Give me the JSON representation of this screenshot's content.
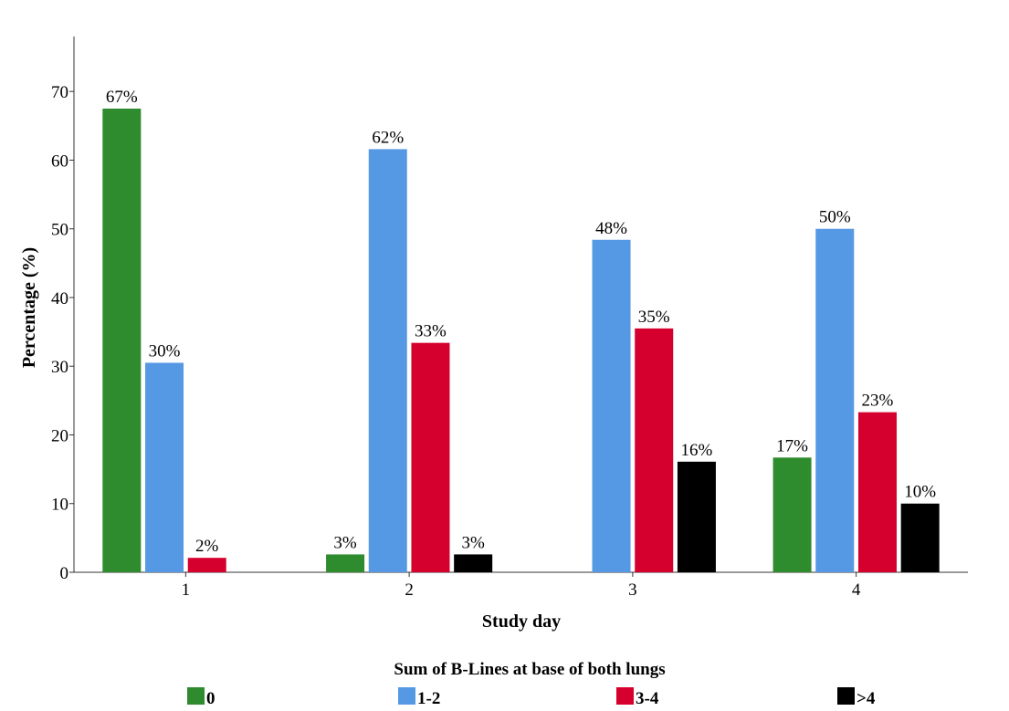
{
  "chart_data": {
    "type": "bar",
    "title": "",
    "xlabel": "Study day",
    "ylabel": "Percentage (%)",
    "ylim": [
      0,
      78
    ],
    "yticks": [
      0,
      10,
      20,
      30,
      40,
      50,
      60,
      70
    ],
    "grid": false,
    "categories": [
      "1",
      "2",
      "3",
      "4"
    ],
    "legend_title": "Sum of B-Lines at base of both lungs",
    "legend_position": "bottom",
    "series": [
      {
        "name": "0",
        "color": "#2e8b2e",
        "values": [
          67.5,
          2.6,
          null,
          16.7
        ],
        "labels": [
          "67%",
          "3%",
          "",
          "17%"
        ]
      },
      {
        "name": "1-2",
        "color": "#5599e4",
        "values": [
          30.5,
          61.6,
          48.4,
          50.0
        ],
        "labels": [
          "30%",
          "62%",
          "48%",
          "50%"
        ]
      },
      {
        "name": "3-4",
        "color": "#d6002e",
        "values": [
          2.1,
          33.4,
          35.5,
          23.3
        ],
        "labels": [
          "2%",
          "33%",
          "35%",
          "23%"
        ]
      },
      {
        "name": ">4",
        "color": "#000000",
        "values": [
          null,
          2.6,
          16.1,
          10.0
        ],
        "labels": [
          "",
          "3%",
          "16%",
          "10%"
        ]
      }
    ]
  }
}
